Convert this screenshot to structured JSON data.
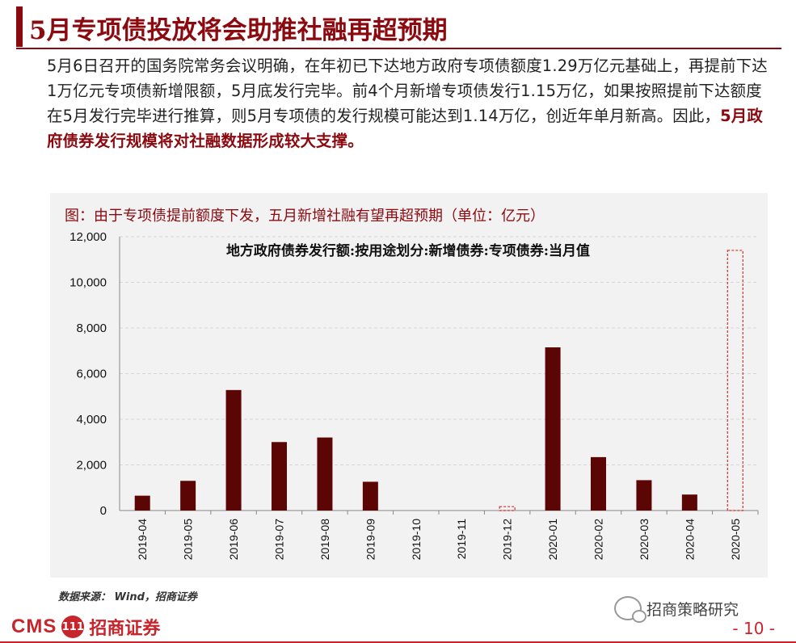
{
  "slide": {
    "title": "5月专项债投放将会助推社融再超预期",
    "paragraph_normal": "5月6日召开的国务院常务会议明确，在年初已下达地方政府专项债额度1.29万亿元基础上，再提前下达1万亿元专项债新增限额，5月底发行完毕。前4个月新增专项债发行1.15万亿，如果按照提前下达额度在5月发行完毕进行推算，则5月专项债的发行规模可能达到1.14万亿，创近年单月新高。因此，",
    "paragraph_emphasis": "5月政府债券发行规模将对社融数据形成较大支撑。",
    "page_number": "- 10 -"
  },
  "chart_caption": "图：由于专项债提前额度下发，五月新增社融有望再超预期（单位：亿元）",
  "source": "数据来源： Wind，招商证券",
  "footer": {
    "brand_en": "CMS",
    "brand_logo": "111",
    "brand_cn": "招商证券",
    "wechat_label": "招商策略研究"
  },
  "colors": {
    "bar": "#5c0505",
    "accent": "#8b0a10",
    "brand": "#c7252c",
    "forecast_dash": "#d0312d"
  },
  "chart_data": {
    "type": "bar",
    "title": "地方政府债券发行额:按用途划分:新增债券:专项债券:当月值",
    "categories": [
      "2019-04",
      "2019-05",
      "2019-06",
      "2019-07",
      "2019-08",
      "2019-09",
      "2019-10",
      "2019-11",
      "2019-12",
      "2020-01",
      "2020-02",
      "2020-03",
      "2020-04",
      "2020-05"
    ],
    "values": [
      650,
      1300,
      5280,
      3000,
      3200,
      1260,
      0,
      0,
      0,
      7150,
      2340,
      1330,
      700,
      0
    ],
    "projected": [
      0,
      0,
      0,
      0,
      0,
      0,
      0,
      0,
      170,
      0,
      0,
      0,
      0,
      11400
    ],
    "ylim": [
      0,
      12000
    ],
    "yticks": [
      0,
      2000,
      4000,
      6000,
      8000,
      10000,
      12000
    ],
    "ytick_labels": [
      "0",
      "2,000",
      "4,000",
      "6,000",
      "8,000",
      "10,000",
      "12,000"
    ],
    "grid": true
  }
}
